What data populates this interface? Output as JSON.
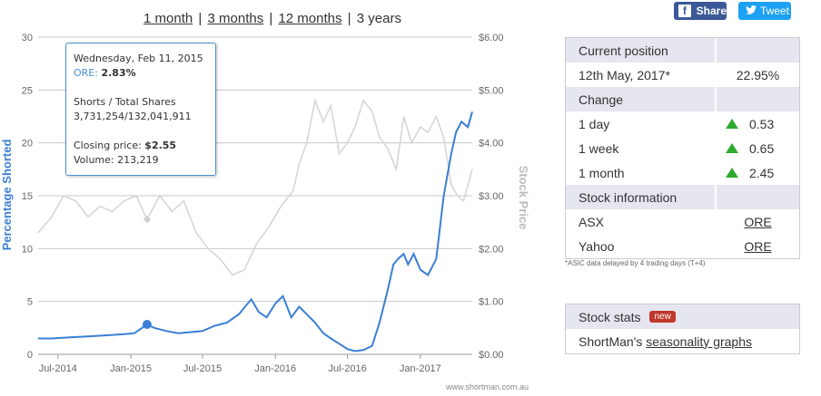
{
  "range": {
    "links": [
      "1 month",
      "3 months",
      "12 months"
    ],
    "current": "3 years",
    "sep": "|"
  },
  "social": {
    "share_label": "Share",
    "tweet_label": "Tweet",
    "fb_glyph": "f"
  },
  "tooltip": {
    "date": "Wednesday, Feb 11, 2015",
    "ticker_label": "ORE:",
    "ticker_value": "2.83%",
    "shares_title": "Shorts / Total Shares",
    "shares_value": "3,731,254/132,041,911",
    "closing_label": "Closing price:",
    "closing_value": "$2.55",
    "volume_label": "Volume:",
    "volume_value": "213,219"
  },
  "colors": {
    "short_line": "#3a7fd5",
    "price_line": "#d6d6d6",
    "grid": "#c8c8c8",
    "up": "#2eaa2e",
    "badge": "#c0392b"
  },
  "chart_data": {
    "type": "line",
    "y_left": {
      "label": "Percentage Shorted",
      "ticks": [
        "0",
        "5",
        "10",
        "15",
        "20",
        "25",
        "30"
      ],
      "range": [
        0,
        30
      ]
    },
    "y_right": {
      "label": "Stock Price",
      "ticks": [
        "$0.00",
        "$1.00",
        "$2.00",
        "$3.00",
        "$4.00",
        "$5.00",
        "$6.00"
      ],
      "range": [
        0,
        6
      ]
    },
    "x_ticks": [
      "Jul-2014",
      "Jan-2015",
      "Jul-2015",
      "Jan-2016",
      "Jul-2016",
      "Jan-2017"
    ],
    "x_tick_dates": [
      "2014-07-01",
      "2015-01-01",
      "2015-07-01",
      "2016-01-01",
      "2016-07-01",
      "2017-01-01"
    ],
    "x_range": [
      "2014-05-12",
      "2017-05-12"
    ],
    "credit": "www.shortman.com.au",
    "highlight": {
      "date": "2015-02-11",
      "value": 2.83
    },
    "series": [
      {
        "name": "ORE",
        "axis": "left",
        "dates": [
          "2014-05-12",
          "2014-06-15",
          "2014-08-01",
          "2014-09-15",
          "2014-11-01",
          "2014-12-15",
          "2015-01-10",
          "2015-02-11",
          "2015-03-01",
          "2015-04-01",
          "2015-05-01",
          "2015-06-01",
          "2015-07-01",
          "2015-08-01",
          "2015-09-01",
          "2015-10-01",
          "2015-11-01",
          "2015-11-20",
          "2015-12-10",
          "2016-01-01",
          "2016-01-20",
          "2016-02-10",
          "2016-03-01",
          "2016-03-20",
          "2016-04-10",
          "2016-05-01",
          "2016-05-20",
          "2016-06-10",
          "2016-07-01",
          "2016-07-20",
          "2016-08-10",
          "2016-09-01",
          "2016-09-20",
          "2016-10-10",
          "2016-10-25",
          "2016-11-05",
          "2016-11-20",
          "2016-12-01",
          "2016-12-15",
          "2017-01-01",
          "2017-01-20",
          "2017-02-10",
          "2017-03-01",
          "2017-03-20",
          "2017-04-01",
          "2017-04-15",
          "2017-05-01",
          "2017-05-12"
        ],
        "values": [
          1.5,
          1.5,
          1.6,
          1.7,
          1.8,
          1.9,
          2.0,
          2.83,
          2.5,
          2.2,
          2.0,
          2.1,
          2.2,
          2.7,
          3.0,
          3.8,
          5.2,
          4.0,
          3.5,
          4.8,
          5.5,
          3.5,
          4.5,
          3.8,
          3.0,
          2.0,
          1.5,
          1.0,
          0.5,
          0.3,
          0.4,
          0.8,
          3.0,
          6.0,
          8.5,
          9.0,
          9.5,
          8.5,
          9.5,
          8.0,
          7.5,
          9.0,
          15.0,
          19.0,
          21.0,
          22.0,
          21.5,
          22.95
        ]
      },
      {
        "name": "Stock Price",
        "axis": "right",
        "dates": [
          "2014-05-12",
          "2014-06-15",
          "2014-07-15",
          "2014-08-15",
          "2014-09-15",
          "2014-10-15",
          "2014-11-15",
          "2014-12-15",
          "2015-01-15",
          "2015-02-11",
          "2015-03-15",
          "2015-04-15",
          "2015-05-15",
          "2015-06-15",
          "2015-07-15",
          "2015-08-15",
          "2015-09-15",
          "2015-10-15",
          "2015-11-15",
          "2015-12-15",
          "2016-01-15",
          "2016-02-15",
          "2016-03-01",
          "2016-03-20",
          "2016-04-10",
          "2016-05-01",
          "2016-05-20",
          "2016-06-10",
          "2016-07-01",
          "2016-07-20",
          "2016-08-10",
          "2016-09-01",
          "2016-09-20",
          "2016-10-10",
          "2016-11-01",
          "2016-11-20",
          "2016-12-10",
          "2017-01-01",
          "2017-01-20",
          "2017-02-10",
          "2017-03-01",
          "2017-03-20",
          "2017-04-05",
          "2017-04-20",
          "2017-05-12"
        ],
        "values": [
          2.3,
          2.6,
          3.0,
          2.9,
          2.6,
          2.8,
          2.7,
          2.9,
          3.0,
          2.55,
          3.0,
          2.7,
          2.9,
          2.3,
          2.0,
          1.8,
          1.5,
          1.6,
          2.1,
          2.4,
          2.8,
          3.1,
          3.6,
          4.0,
          4.8,
          4.4,
          4.7,
          3.8,
          4.0,
          4.3,
          4.8,
          4.6,
          4.1,
          3.9,
          3.5,
          4.5,
          4.0,
          4.3,
          4.2,
          4.5,
          4.1,
          3.2,
          3.0,
          2.9,
          3.5
        ]
      }
    ]
  },
  "position": {
    "title": "Current position",
    "date": "12th May, 2017*",
    "value": "22.95%",
    "change_title": "Change",
    "changes": [
      {
        "label": "1 day",
        "value": "0.53"
      },
      {
        "label": "1 week",
        "value": "0.65"
      },
      {
        "label": "1 month",
        "value": "2.45"
      }
    ],
    "info_title": "Stock information",
    "info": [
      {
        "label": "ASX",
        "value": "ORE"
      },
      {
        "label": "Yahoo",
        "value": "ORE"
      }
    ]
  },
  "note": "*ASIC data delayed by 4 trading days (T+4)",
  "stats": {
    "title": "Stock stats",
    "badge": "new",
    "prefix": "ShortMan's ",
    "link": "seasonality graphs"
  }
}
